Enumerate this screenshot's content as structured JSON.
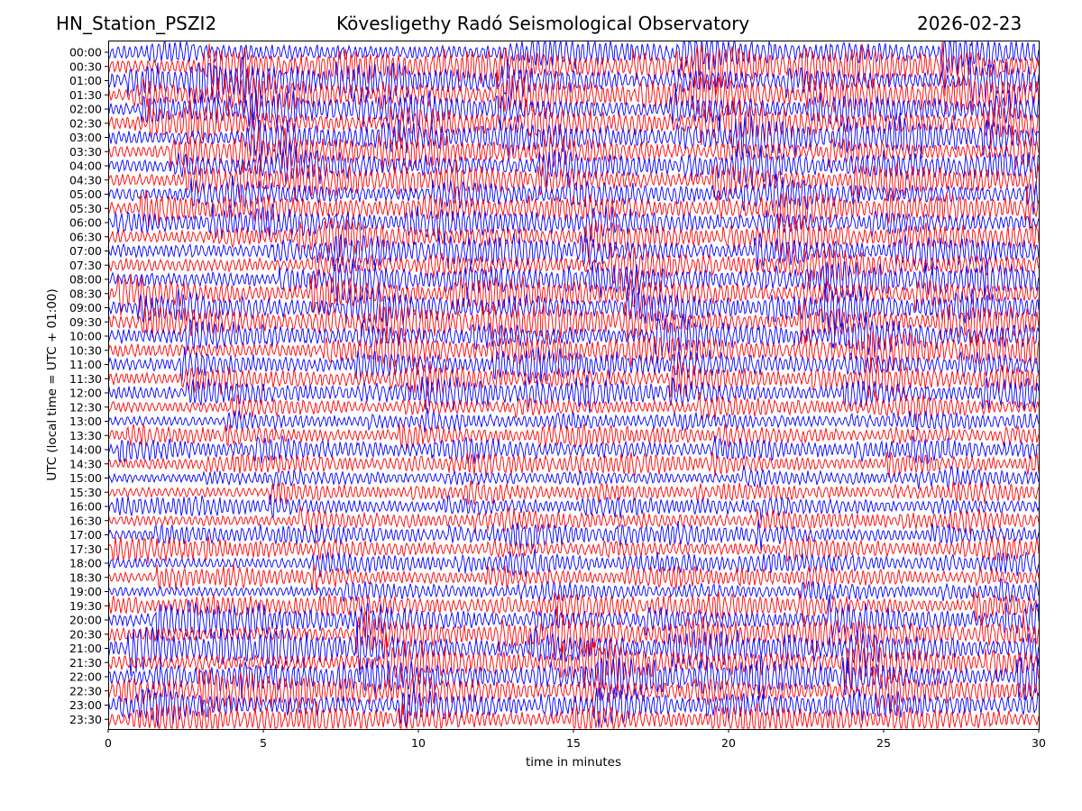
{
  "header": {
    "station": "HN_Station_PSZI2",
    "observatory": "Kövesligethy Radó Seismological Observatory",
    "date": "2026-02-23"
  },
  "chart_data": {
    "type": "line",
    "title": "Kövesligethy Radó Seismological Observatory",
    "xlabel": "time in minutes",
    "ylabel": "UTC (local time = UTC + 01:00)",
    "xlim": [
      0,
      30
    ],
    "x_ticks": [
      0,
      5,
      10,
      15,
      20,
      25,
      30
    ],
    "y_tick_labels": [
      "00:00",
      "00:30",
      "01:00",
      "01:30",
      "02:00",
      "02:30",
      "03:00",
      "03:30",
      "04:00",
      "04:30",
      "05:00",
      "05:30",
      "06:00",
      "06:30",
      "07:00",
      "07:30",
      "08:00",
      "08:30",
      "09:00",
      "09:30",
      "10:00",
      "10:30",
      "11:00",
      "11:30",
      "12:00",
      "12:30",
      "13:00",
      "13:30",
      "14:00",
      "14:30",
      "15:00",
      "15:30",
      "16:00",
      "16:30",
      "17:00",
      "17:30",
      "18:00",
      "18:30",
      "19:00",
      "19:30",
      "20:00",
      "20:30",
      "21:00",
      "21:30",
      "22:00",
      "22:30",
      "23:00",
      "23:30"
    ],
    "trace_colors": [
      "#0000ff",
      "#ff0000"
    ],
    "trace_activity": [
      0.9,
      1.0,
      0.9,
      1.0,
      0.8,
      0.9,
      0.9,
      0.8,
      0.8,
      0.8,
      0.7,
      0.7,
      0.8,
      0.8,
      0.8,
      0.8,
      0.9,
      0.9,
      0.9,
      0.9,
      0.9,
      0.8,
      0.8,
      0.7,
      0.7,
      0.5,
      0.35,
      0.5,
      0.55,
      0.5,
      0.35,
      0.4,
      0.45,
      0.45,
      0.5,
      0.5,
      0.5,
      0.5,
      0.4,
      0.6,
      0.8,
      0.9,
      1.0,
      1.0,
      1.0,
      0.9,
      0.8,
      0.7
    ],
    "grid": false,
    "legend": "none"
  }
}
